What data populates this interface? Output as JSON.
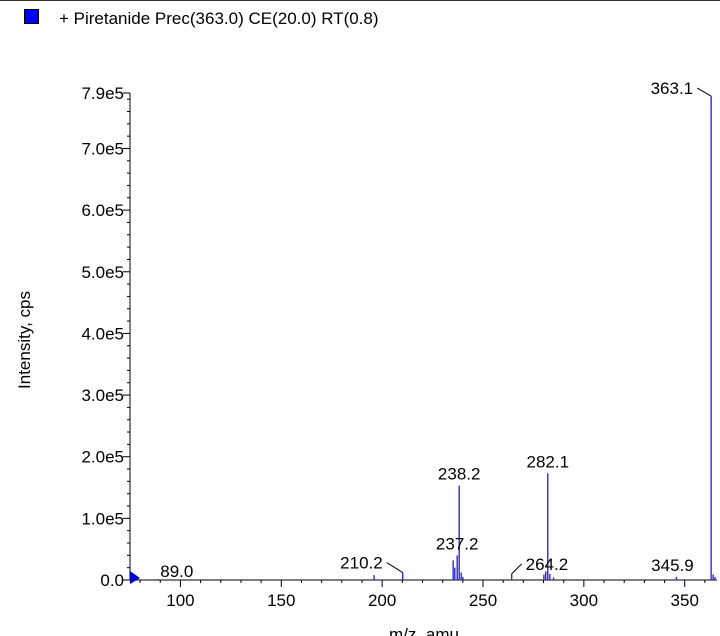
{
  "legend": {
    "label": "+ Piretanide Prec(363.0) CE(20.0) RT(0.8)",
    "color": "#0000ff"
  },
  "colors": {
    "series": "#2b2bd6",
    "axis": "#000000",
    "marker": "#0000cc"
  },
  "chart_data": {
    "type": "bar",
    "title": "",
    "xlabel": "m/z, amu",
    "ylabel": "Intensity, cps",
    "xlim": [
      75,
      366
    ],
    "ylim": [
      0,
      790000
    ],
    "xticks": [
      100,
      150,
      200,
      250,
      300,
      350
    ],
    "yticks": [
      {
        "value": 0,
        "label": "0.0"
      },
      {
        "value": 100000,
        "label": "1.0e5"
      },
      {
        "value": 200000,
        "label": "2.0e5"
      },
      {
        "value": 300000,
        "label": "3.0e5"
      },
      {
        "value": 400000,
        "label": "4.0e5"
      },
      {
        "value": 500000,
        "label": "5.0e5"
      },
      {
        "value": 600000,
        "label": "6.0e5"
      },
      {
        "value": 700000,
        "label": "7.0e5"
      },
      {
        "value": 790000,
        "label": "7.9e5"
      }
    ],
    "peaks": [
      {
        "mz": 89.0,
        "intensity": 1500
      },
      {
        "mz": 196.0,
        "intensity": 8000
      },
      {
        "mz": 210.2,
        "intensity": 12000
      },
      {
        "mz": 235.2,
        "intensity": 32000
      },
      {
        "mz": 236.0,
        "intensity": 20000
      },
      {
        "mz": 237.2,
        "intensity": 40000
      },
      {
        "mz": 238.2,
        "intensity": 153000
      },
      {
        "mz": 239.2,
        "intensity": 12000
      },
      {
        "mz": 240.0,
        "intensity": 5000
      },
      {
        "mz": 264.2,
        "intensity": 10000
      },
      {
        "mz": 280.2,
        "intensity": 9000
      },
      {
        "mz": 281.1,
        "intensity": 14000
      },
      {
        "mz": 282.1,
        "intensity": 173000
      },
      {
        "mz": 283.1,
        "intensity": 10000
      },
      {
        "mz": 285.0,
        "intensity": 4000
      },
      {
        "mz": 345.9,
        "intensity": 5000
      },
      {
        "mz": 363.1,
        "intensity": 785000
      },
      {
        "mz": 364.1,
        "intensity": 9000
      },
      {
        "mz": 365.0,
        "intensity": 5000
      }
    ],
    "annotations": [
      {
        "label": "89.0",
        "mz": 89.0,
        "intensity": 1500,
        "leader": false,
        "anchor": "start",
        "dx": 2,
        "dy": -2
      },
      {
        "label": "210.2",
        "mz": 210.2,
        "intensity": 12000,
        "leader": true,
        "anchor": "end",
        "dx": -20,
        "dy": -4
      },
      {
        "label": "237.2",
        "mz": 237.2,
        "intensity": 40000,
        "leader": false,
        "anchor": "middle",
        "dx": 0,
        "dy": -6
      },
      {
        "label": "238.2",
        "mz": 238.2,
        "intensity": 153000,
        "leader": false,
        "anchor": "middle",
        "dx": 0,
        "dy": -6
      },
      {
        "label": "264.2",
        "mz": 264.2,
        "intensity": 10000,
        "leader": true,
        "anchor": "start",
        "dx": 14,
        "dy": -4
      },
      {
        "label": "282.1",
        "mz": 282.1,
        "intensity": 173000,
        "leader": false,
        "anchor": "middle",
        "dx": 0,
        "dy": -6
      },
      {
        "label": "345.9",
        "mz": 345.9,
        "intensity": 5000,
        "leader": false,
        "anchor": "middle",
        "dx": -4,
        "dy": -6
      },
      {
        "label": "363.1",
        "mz": 363.1,
        "intensity": 785000,
        "leader": true,
        "anchor": "end",
        "dx": -18,
        "dy": -2
      }
    ]
  }
}
